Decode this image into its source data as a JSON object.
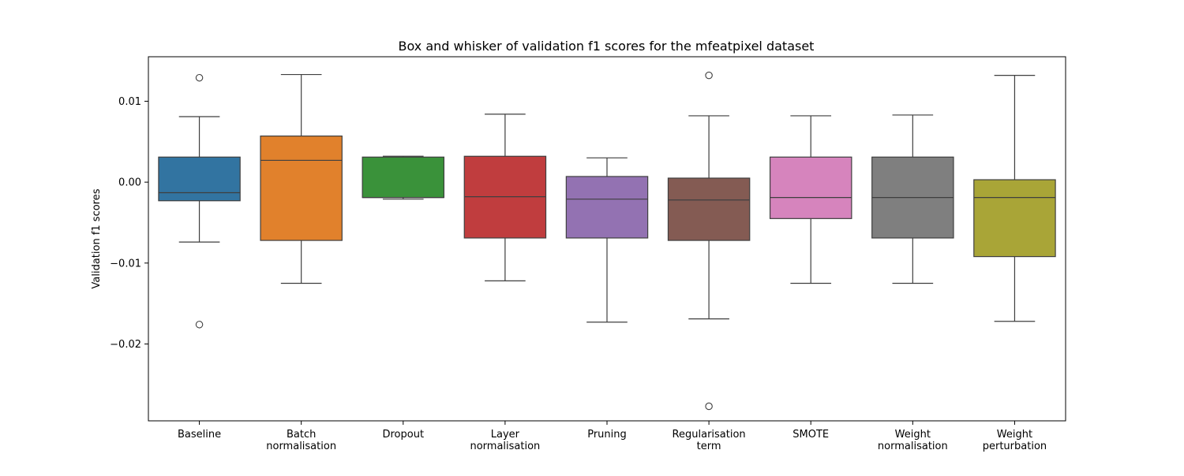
{
  "chart_data": {
    "type": "box",
    "title": "Box and whisker of validation f1 scores for the mfeatpixel dataset",
    "xlabel": "",
    "ylabel": "Validation f1 scores",
    "ylim": [
      -0.0295,
      0.0155
    ],
    "yticks": [
      {
        "value": 0.01,
        "label": "0.01"
      },
      {
        "value": 0.0,
        "label": "0.00"
      },
      {
        "value": -0.01,
        "label": "−0.01"
      },
      {
        "value": -0.02,
        "label": "−0.02"
      }
    ],
    "grid": false,
    "legend": "none",
    "categories": [
      {
        "lines": [
          "Baseline"
        ]
      },
      {
        "lines": [
          "Batch",
          "normalisation"
        ]
      },
      {
        "lines": [
          "Dropout"
        ]
      },
      {
        "lines": [
          "Layer",
          "normalisation"
        ]
      },
      {
        "lines": [
          "Pruning"
        ]
      },
      {
        "lines": [
          "Regularisation",
          "term"
        ]
      },
      {
        "lines": [
          "SMOTE"
        ]
      },
      {
        "lines": [
          "Weight",
          "normalisation"
        ]
      },
      {
        "lines": [
          "Weight",
          "perturbation"
        ]
      }
    ],
    "boxes": [
      {
        "whislo": -0.0074,
        "q1": -0.0023,
        "med": -0.0013,
        "q3": 0.0031,
        "whishi": 0.0081,
        "fliers": [
          0.0129,
          -0.0176
        ],
        "color": "#3274a1"
      },
      {
        "whislo": -0.0125,
        "q1": -0.0072,
        "med": 0.0027,
        "q3": 0.0057,
        "whishi": 0.0133,
        "fliers": [],
        "color": "#e1812c"
      },
      {
        "whislo": -0.0021,
        "q1": -0.0019,
        "med": -0.0019,
        "q3": 0.0031,
        "whishi": 0.0032,
        "fliers": [],
        "color": "#3a923a"
      },
      {
        "whislo": -0.0122,
        "q1": -0.0069,
        "med": -0.0018,
        "q3": 0.0032,
        "whishi": 0.0084,
        "fliers": [],
        "color": "#c03d3e"
      },
      {
        "whislo": -0.0173,
        "q1": -0.0069,
        "med": -0.0021,
        "q3": 0.0007,
        "whishi": 0.003,
        "fliers": [],
        "color": "#9372b2"
      },
      {
        "whislo": -0.0169,
        "q1": -0.0072,
        "med": -0.0022,
        "q3": 0.0005,
        "whishi": 0.0082,
        "fliers": [
          0.0132,
          -0.0277
        ],
        "color": "#845b53"
      },
      {
        "whislo": -0.0125,
        "q1": -0.0045,
        "med": -0.0019,
        "q3": 0.0031,
        "whishi": 0.0082,
        "fliers": [],
        "color": "#d684bd"
      },
      {
        "whislo": -0.0125,
        "q1": -0.0069,
        "med": -0.0019,
        "q3": 0.0031,
        "whishi": 0.0083,
        "fliers": [],
        "color": "#7f7f7f"
      },
      {
        "whislo": -0.0172,
        "q1": -0.0092,
        "med": -0.0019,
        "q3": 0.0003,
        "whishi": 0.0132,
        "fliers": [],
        "color": "#a9a537"
      }
    ]
  }
}
